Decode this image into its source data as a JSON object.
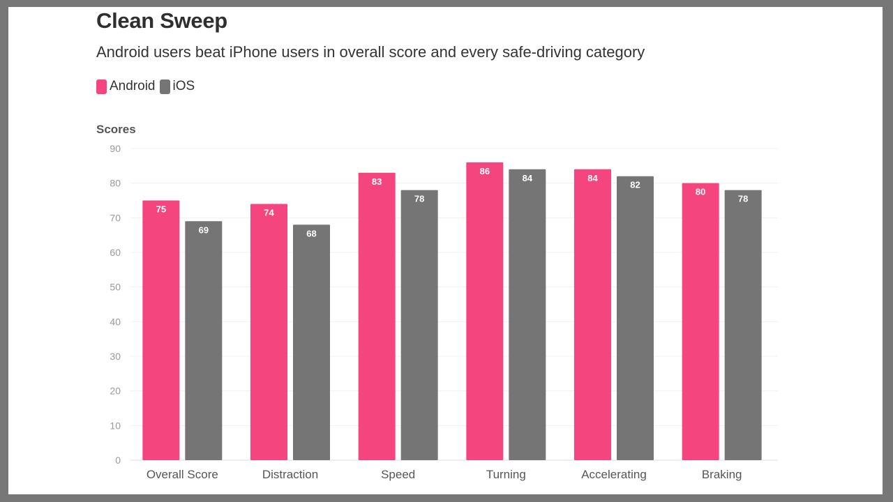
{
  "chart_data": {
    "type": "bar",
    "title": "Clean Sweep",
    "subtitle": "Android users beat iPhone users in overall score and every safe-driving category",
    "ylabel": "Scores",
    "xlabel": "",
    "ylim": [
      0,
      90
    ],
    "yticks": [
      0,
      10,
      20,
      30,
      40,
      50,
      60,
      70,
      80,
      90
    ],
    "grid": true,
    "legend_position": "top-left",
    "categories": [
      "Overall Score",
      "Distraction",
      "Speed",
      "Turning",
      "Accelerating",
      "Braking"
    ],
    "series": [
      {
        "name": "Android",
        "color": "#f5457e",
        "values": [
          75,
          74,
          83,
          86,
          84,
          80
        ]
      },
      {
        "name": "iOS",
        "color": "#757575",
        "values": [
          69,
          68,
          78,
          84,
          82,
          78
        ]
      }
    ]
  }
}
